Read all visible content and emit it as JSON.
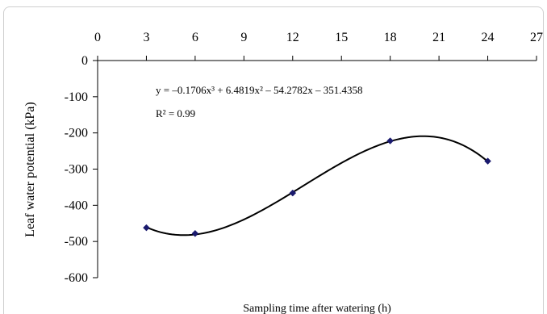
{
  "chart_data": {
    "type": "scatter",
    "xlabel": "Sampling time after watering (h)",
    "ylabel": "Leaf water potential (kPa)",
    "xlim": [
      0,
      27
    ],
    "ylim": [
      -600,
      0
    ],
    "x_ticks": [
      "0",
      "3",
      "6",
      "9",
      "12",
      "15",
      "18",
      "21",
      "24",
      "27"
    ],
    "y_ticks": [
      "0",
      "-100",
      "-200",
      "-300",
      "-400",
      "-500",
      "-600"
    ],
    "x_axis_position": "top",
    "grid": false,
    "series": [
      {
        "x": [
          3,
          6,
          12,
          18,
          24
        ],
        "y": [
          -462,
          -478,
          -366,
          -222,
          -278
        ],
        "marker": "diamond",
        "marker_color": "#1a1a6e"
      }
    ],
    "trendline": {
      "type": "polynomial",
      "order": 3,
      "coefficients": [
        -0.1706,
        6.4819,
        -54.2782,
        -351.4358
      ],
      "equation": "y = –0.1706x³ + 6.4819x² – 54.2782x – 351.4358",
      "r_squared_label": "R² = 0.99",
      "color": "#000000"
    }
  }
}
